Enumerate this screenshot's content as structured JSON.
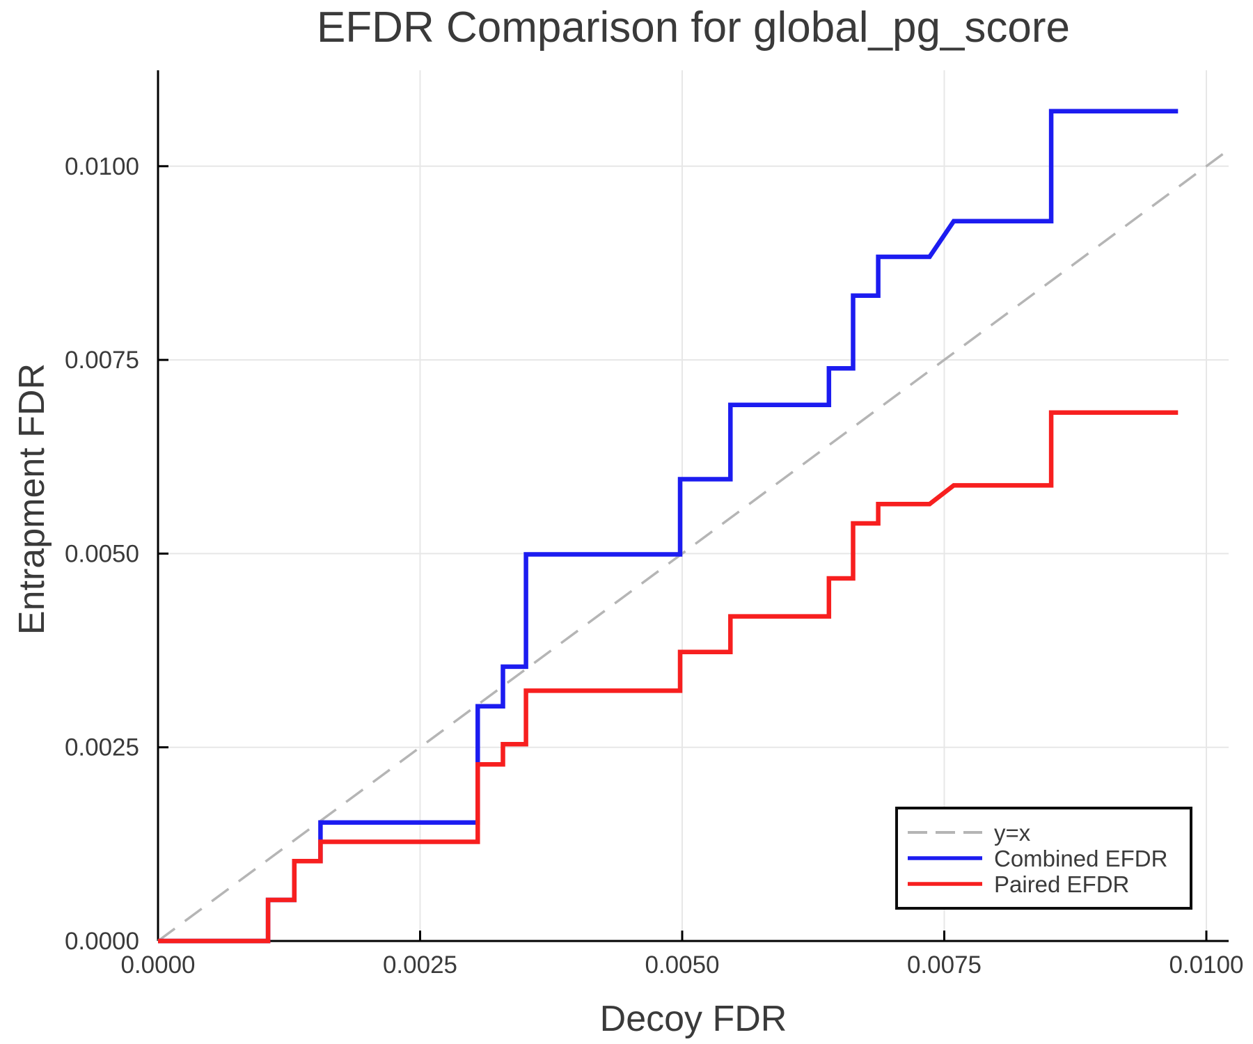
{
  "chart_data": {
    "type": "line",
    "title": "EFDR Comparison for global_pg_score",
    "xlabel": "Decoy FDR",
    "ylabel": "Entrapment FDR",
    "xlim": [
      0,
      0.01021
    ],
    "ylim": [
      0,
      0.01124
    ],
    "grid": true,
    "xticks": {
      "values": [
        0.0,
        0.0025,
        0.005,
        0.0075,
        0.01
      ],
      "labels": [
        "0.0000",
        "0.0025",
        "0.0050",
        "0.0075",
        "0.0100"
      ]
    },
    "yticks": {
      "values": [
        0.0,
        0.0025,
        0.005,
        0.0075,
        0.01
      ],
      "labels": [
        "0.0000",
        "0.0025",
        "0.0050",
        "0.0075",
        "0.0100"
      ]
    },
    "colors": {
      "combined": "#1c1cf0",
      "paired": "#f71f1f",
      "reference": "#b5b5b5",
      "gridline": "#e7e7e7",
      "spine": "#000000",
      "text": "#3a3a3a"
    },
    "reference_line": {
      "label": "y=x",
      "style": "dashed",
      "color": "#b5b5b5",
      "points": [
        [
          0.0,
          0.0
        ],
        [
          0.01016,
          0.01016
        ]
      ]
    },
    "series": [
      {
        "name": "Combined EFDR",
        "color": "#1c1cf0",
        "points": [
          [
            0.0,
            0.0
          ],
          [
            0.00105,
            0.0
          ],
          [
            0.00105,
            0.00053
          ],
          [
            0.0013,
            0.00053
          ],
          [
            0.0013,
            0.00103
          ],
          [
            0.00155,
            0.00103
          ],
          [
            0.00155,
            0.00153
          ],
          [
            0.00305,
            0.00153
          ],
          [
            0.00305,
            0.00303
          ],
          [
            0.00329,
            0.00303
          ],
          [
            0.00329,
            0.00354
          ],
          [
            0.00351,
            0.00354
          ],
          [
            0.00351,
            0.00499
          ],
          [
            0.00498,
            0.00499
          ],
          [
            0.00498,
            0.00596
          ],
          [
            0.00546,
            0.00596
          ],
          [
            0.00546,
            0.00692
          ],
          [
            0.0064,
            0.00692
          ],
          [
            0.0064,
            0.00739
          ],
          [
            0.00663,
            0.00739
          ],
          [
            0.00663,
            0.00833
          ],
          [
            0.00687,
            0.00833
          ],
          [
            0.00687,
            0.00883
          ],
          [
            0.00736,
            0.00883
          ],
          [
            0.00759,
            0.00929
          ],
          [
            0.00852,
            0.00929
          ],
          [
            0.00852,
            0.01071
          ],
          [
            0.00973,
            0.01071
          ]
        ]
      },
      {
        "name": "Paired EFDR",
        "color": "#f71f1f",
        "points": [
          [
            0.0,
            0.0
          ],
          [
            0.00105,
            0.0
          ],
          [
            0.00105,
            0.00053
          ],
          [
            0.0013,
            0.00053
          ],
          [
            0.0013,
            0.00103
          ],
          [
            0.00155,
            0.00103
          ],
          [
            0.00155,
            0.00128
          ],
          [
            0.00305,
            0.00128
          ],
          [
            0.00305,
            0.00228
          ],
          [
            0.00329,
            0.00228
          ],
          [
            0.00329,
            0.00254
          ],
          [
            0.00351,
            0.00254
          ],
          [
            0.00351,
            0.00323
          ],
          [
            0.00498,
            0.00323
          ],
          [
            0.00498,
            0.00373
          ],
          [
            0.00546,
            0.00373
          ],
          [
            0.00546,
            0.00419
          ],
          [
            0.0064,
            0.00419
          ],
          [
            0.0064,
            0.00468
          ],
          [
            0.00663,
            0.00468
          ],
          [
            0.00663,
            0.00539
          ],
          [
            0.00687,
            0.00539
          ],
          [
            0.00687,
            0.00564
          ],
          [
            0.00736,
            0.00564
          ],
          [
            0.00759,
            0.00588
          ],
          [
            0.00852,
            0.00588
          ],
          [
            0.00852,
            0.00682
          ],
          [
            0.00973,
            0.00682
          ]
        ]
      }
    ],
    "legend": {
      "position": "lower right",
      "items": [
        {
          "label": "y=x",
          "color": "#b5b5b5",
          "style": "dashed"
        },
        {
          "label": "Combined EFDR",
          "color": "#1c1cf0",
          "style": "solid"
        },
        {
          "label": "Paired EFDR",
          "color": "#f71f1f",
          "style": "solid"
        }
      ]
    }
  }
}
